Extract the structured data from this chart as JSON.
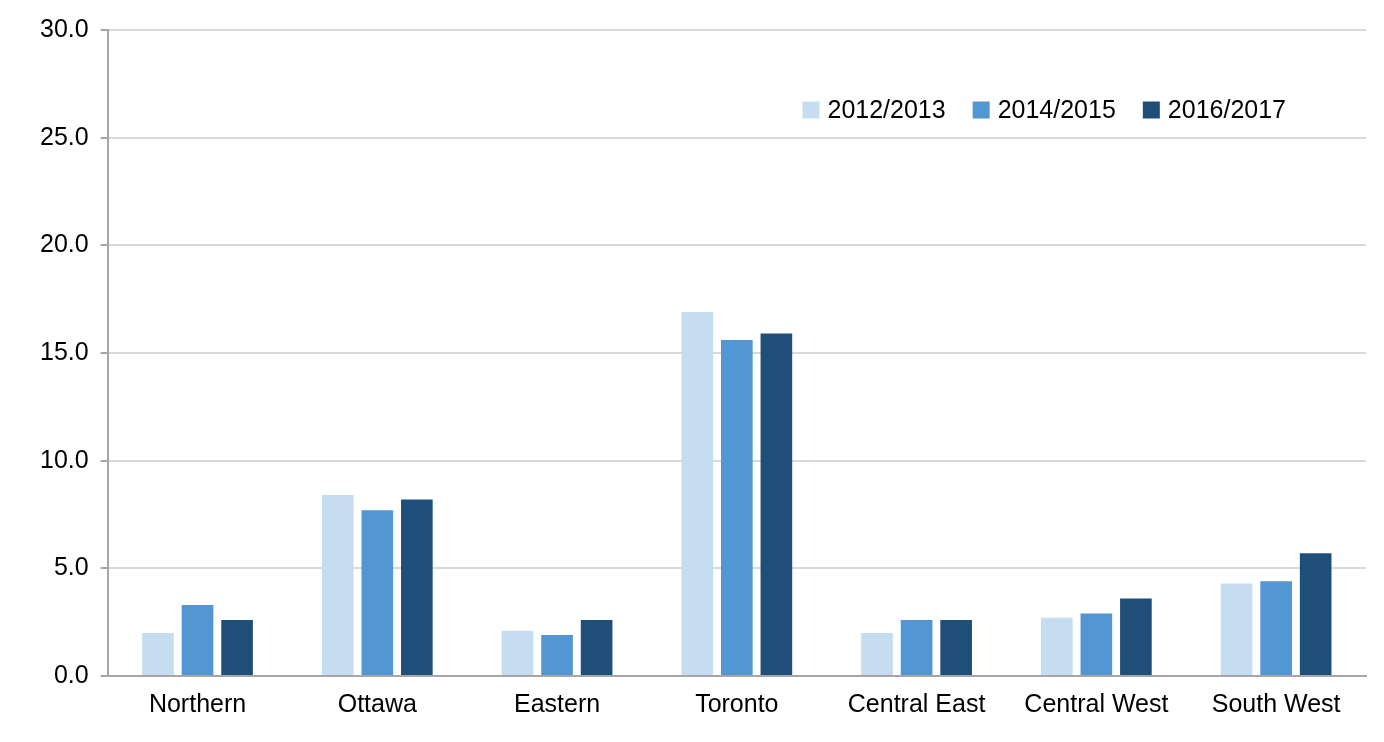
{
  "chart_data": {
    "type": "bar",
    "categories": [
      "Northern",
      "Ottawa",
      "Eastern",
      "Toronto",
      "Central East",
      "Central West",
      "South West"
    ],
    "series": [
      {
        "name": "2012/2013",
        "color": "#c6dcf0",
        "values": [
          2.0,
          8.4,
          2.1,
          16.9,
          2.0,
          2.7,
          4.3
        ]
      },
      {
        "name": "2014/2015",
        "color": "#5296d3",
        "values": [
          3.3,
          7.7,
          1.9,
          15.6,
          2.6,
          2.9,
          4.4
        ]
      },
      {
        "name": "2016/2017",
        "color": "#1f4e79",
        "values": [
          2.6,
          8.2,
          2.6,
          15.9,
          2.6,
          3.6,
          5.7
        ]
      }
    ],
    "ylim": [
      0,
      30
    ],
    "yticks": [
      {
        "value": 0,
        "label": "0.0"
      },
      {
        "value": 5,
        "label": "5.0"
      },
      {
        "value": 10,
        "label": "10.0"
      },
      {
        "value": 15,
        "label": "15.0"
      },
      {
        "value": 20,
        "label": "20.0"
      },
      {
        "value": 25,
        "label": "25.0"
      },
      {
        "value": 30,
        "label": "30.0"
      }
    ],
    "grid": "y",
    "legend": "top right"
  }
}
